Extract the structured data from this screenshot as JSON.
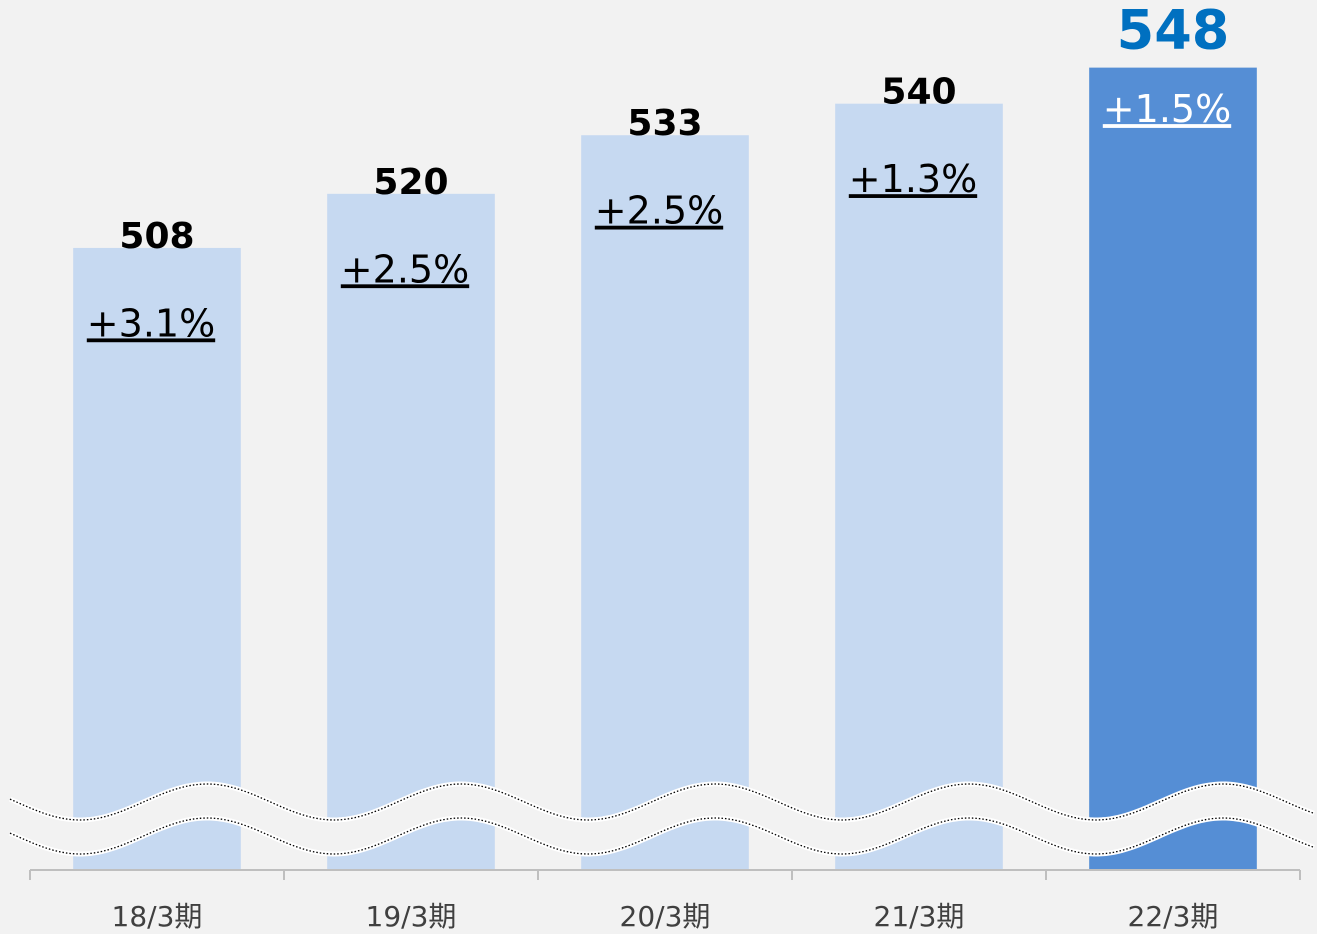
{
  "chart_data": {
    "type": "bar",
    "categories": [
      "18/3期",
      "19/3期",
      "20/3期",
      "21/3期",
      "22/3期"
    ],
    "values": [
      508,
      520,
      533,
      540,
      548
    ],
    "colors": [
      "#c6d9f1",
      "#c6d9f1",
      "#c6d9f1",
      "#c6d9f1",
      "#558ed5"
    ],
    "label_colors": [
      "#000000",
      "#000000",
      "#000000",
      "#000000",
      "#0070c0"
    ],
    "annotations": [
      "+3.1%",
      "+2.5%",
      "+2.5%",
      "+1.3%",
      "+1.5%"
    ],
    "annotation_colors": [
      "#000000",
      "#000000",
      "#000000",
      "#000000",
      "#ffffff"
    ],
    "ylim": [
      370,
      563
    ],
    "axis_break": true
  }
}
